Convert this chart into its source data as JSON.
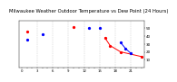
{
  "title": "Milwaukee Weather Outdoor Temperature vs Dew Point (24 Hours)",
  "title_fontsize": 3.8,
  "bg_color": "#ffffff",
  "plot_bg": "#ffffff",
  "grid_color": "#b0b0b0",
  "temp_color": "#ff0000",
  "dew_color": "#0000ff",
  "black_color": "#000000",
  "marker_size": 1.8,
  "line_width": 0.7,
  "ylim": [
    0,
    60
  ],
  "xlim": [
    -0.5,
    23.5
  ],
  "yticks": [
    10,
    20,
    30,
    40,
    50
  ],
  "ytick_labels": [
    "1",
    "2",
    "3",
    "4",
    "5"
  ],
  "ytick_fontsize": 3.0,
  "xtick_fontsize": 2.8,
  "vgrid_positions": [
    3,
    6,
    9,
    12,
    15,
    18,
    21
  ],
  "temp_dots_x": [
    1,
    10,
    16,
    17,
    19,
    23
  ],
  "temp_dots_y": [
    46,
    52,
    38,
    28,
    20,
    14
  ],
  "dew_dots_x": [
    1,
    4,
    13,
    15,
    19,
    20,
    21
  ],
  "dew_dots_y": [
    36,
    42,
    50,
    50,
    32,
    24,
    18
  ],
  "temp_line_x": [
    16,
    17,
    19,
    23
  ],
  "temp_line_y": [
    38,
    28,
    20,
    14
  ],
  "dew_line_x": [
    19,
    20,
    21
  ],
  "dew_line_y": [
    32,
    24,
    18
  ]
}
